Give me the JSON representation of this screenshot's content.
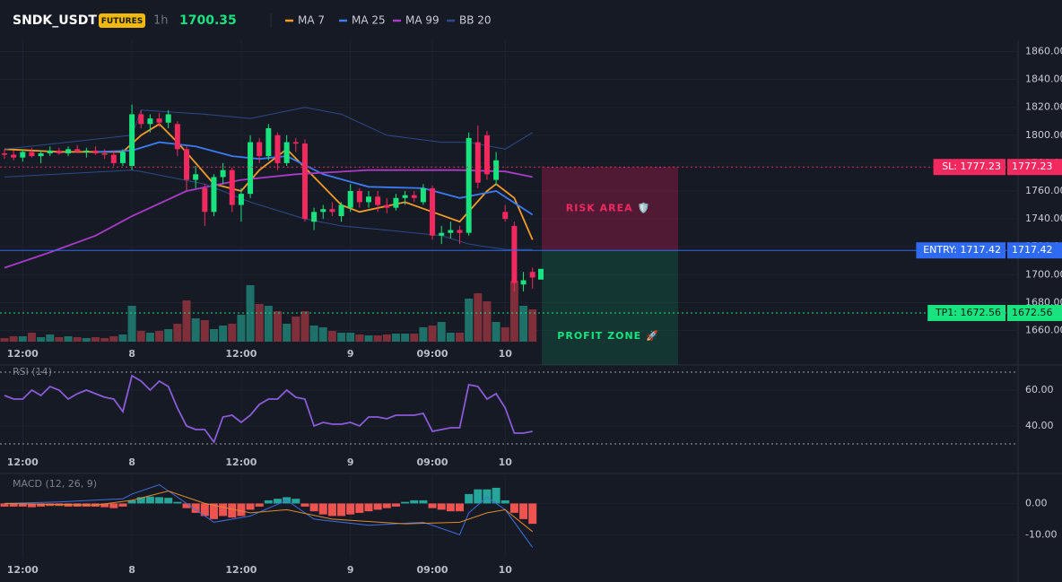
{
  "header": {
    "symbol": "SNDK_USDT",
    "badge": "FUTURES",
    "interval": "1h",
    "price": 1700.35
  },
  "chart_data": [
    {
      "type": "candlestick",
      "categories": [
        null,
        null,
        "12:00",
        null,
        null,
        null,
        null,
        null,
        null,
        null,
        null,
        null,
        null,
        null,
        "8",
        null,
        null,
        null,
        null,
        null,
        null,
        null,
        null,
        null,
        null,
        null,
        "12:00",
        null,
        null,
        null,
        null,
        null,
        null,
        null,
        null,
        null,
        null,
        null,
        "9",
        null,
        null,
        null,
        null,
        null,
        null,
        null,
        null,
        "09:00",
        null,
        null,
        null,
        null,
        null,
        null,
        null,
        "10",
        null,
        null,
        null
      ],
      "open": [
        1787,
        1786,
        1784,
        1788,
        1785,
        1787,
        1789,
        1787,
        1790,
        1788,
        1789,
        1787,
        1786,
        1780,
        1778,
        1815,
        1808,
        1812,
        1809,
        1808,
        1790,
        1768,
        1762,
        1745,
        1770,
        1775,
        1750,
        1758,
        1795,
        1785,
        1800,
        1780,
        1795,
        1794,
        1738,
        1745,
        1747,
        1742,
        1748,
        1760,
        1752,
        1756,
        1750,
        1748,
        1755,
        1757,
        1752,
        1762,
        1728,
        1730,
        1732,
        1730,
        1795,
        1800,
        1768,
        1745,
        1735,
        1693,
        1702
      ],
      "high": [
        1790,
        1789,
        1790,
        1791,
        1789,
        1792,
        1791,
        1792,
        1793,
        1791,
        1792,
        1790,
        1789,
        1790,
        1822,
        1818,
        1815,
        1816,
        1818,
        1810,
        1792,
        1778,
        1765,
        1772,
        1780,
        1777,
        1762,
        1800,
        1798,
        1808,
        1802,
        1800,
        1798,
        1797,
        1748,
        1750,
        1752,
        1752,
        1765,
        1762,
        1760,
        1760,
        1755,
        1758,
        1760,
        1760,
        1765,
        1764,
        1735,
        1738,
        1735,
        1802,
        1807,
        1803,
        1788,
        1750,
        1738,
        1702,
        1705
      ],
      "low": [
        1783,
        1782,
        1781,
        1784,
        1780,
        1785,
        1786,
        1785,
        1787,
        1784,
        1786,
        1783,
        1778,
        1778,
        1775,
        1805,
        1802,
        1806,
        1805,
        1785,
        1760,
        1762,
        1735,
        1742,
        1765,
        1745,
        1738,
        1755,
        1780,
        1782,
        1775,
        1778,
        1788,
        1738,
        1732,
        1740,
        1742,
        1738,
        1745,
        1748,
        1748,
        1745,
        1744,
        1746,
        1750,
        1752,
        1750,
        1725,
        1722,
        1726,
        1722,
        1728,
        1762,
        1768,
        1764,
        1738,
        1688,
        1688,
        1690
      ],
      "close": [
        1786,
        1784,
        1788,
        1785,
        1787,
        1789,
        1787,
        1790,
        1788,
        1789,
        1787,
        1786,
        1780,
        1788,
        1815,
        1808,
        1812,
        1809,
        1815,
        1790,
        1768,
        1772,
        1745,
        1770,
        1775,
        1750,
        1758,
        1795,
        1785,
        1805,
        1780,
        1795,
        1794,
        1740,
        1745,
        1747,
        1745,
        1750,
        1760,
        1752,
        1756,
        1750,
        1748,
        1755,
        1757,
        1755,
        1762,
        1728,
        1730,
        1732,
        1730,
        1798,
        1766,
        1772,
        1782,
        1740,
        1694,
        1696,
        1698
      ],
      "volume": [
        4,
        6,
        6,
        10,
        5,
        8,
        5,
        6,
        5,
        4,
        5,
        4,
        6,
        8,
        40,
        12,
        10,
        12,
        14,
        20,
        46,
        26,
        24,
        14,
        18,
        20,
        30,
        63,
        42,
        40,
        34,
        20,
        28,
        34,
        18,
        16,
        12,
        10,
        10,
        8,
        7,
        7,
        8,
        9,
        9,
        9,
        16,
        18,
        22,
        10,
        10,
        48,
        54,
        45,
        22,
        16,
        68,
        40,
        36
      ],
      "up_color": "#19e37f",
      "down_color": "#f2295f",
      "volume_up_color": "#1d7168",
      "volume_down_color": "#7e2f3a",
      "ylim": [
        1652,
        1868
      ],
      "yticks": [
        {
          "value": 1660,
          "label": "1660.00"
        },
        {
          "value": 1680,
          "label": "1680.00"
        },
        {
          "value": 1700,
          "label": "1700.00"
        },
        {
          "value": 1720,
          "label": "1720.00"
        },
        {
          "value": 1740,
          "label": "1740.00"
        },
        {
          "value": 1760,
          "label": "1760.00"
        },
        {
          "value": 1780,
          "label": "1780.00"
        },
        {
          "value": 1800,
          "label": "1800.00"
        },
        {
          "value": 1820,
          "label": "1820.00"
        },
        {
          "value": 1840,
          "label": "1840.00"
        },
        {
          "value": 1860,
          "label": "1860.00"
        }
      ],
      "overlays": [
        {
          "name": "MA 7",
          "color": "#f39c26",
          "x": [
            0,
            6,
            13,
            15,
            17,
            19,
            21,
            23,
            26,
            28,
            31,
            34,
            37,
            39,
            44,
            47,
            50,
            53,
            54,
            56,
            57,
            58
          ],
          "values": [
            1790,
            1788,
            1788,
            1800,
            1808,
            1795,
            1780,
            1765,
            1760,
            1775,
            1790,
            1770,
            1750,
            1745,
            1752,
            1745,
            1738,
            1760,
            1765,
            1755,
            1740,
            1725
          ]
        },
        {
          "name": "MA 25",
          "color": "#3c7bf0",
          "x": [
            10,
            14,
            17,
            21,
            25,
            28,
            31,
            35,
            40,
            46,
            50,
            54,
            58
          ],
          "values": [
            1788,
            1789,
            1795,
            1792,
            1785,
            1783,
            1785,
            1772,
            1763,
            1762,
            1755,
            1760,
            1743
          ]
        },
        {
          "name": "MA 99",
          "color": "#a83bc7",
          "x": [
            0,
            5,
            10,
            14,
            20,
            26,
            32,
            40,
            50,
            55,
            58
          ],
          "values": [
            1705,
            1716,
            1728,
            1742,
            1760,
            1768,
            1772,
            1775,
            1775,
            1774,
            1770
          ]
        },
        {
          "name": "BB 20",
          "color": "#2c4a86",
          "x": [
            0,
            14,
            15,
            22,
            27,
            33,
            37,
            42,
            48,
            51,
            55,
            58
          ],
          "upper": [
            1790,
            1800,
            1818,
            1815,
            1812,
            1820,
            1815,
            1800,
            1795,
            1795,
            1790,
            1802
          ],
          "lower": [
            1770,
            1775,
            1774,
            1765,
            1752,
            1740,
            1735,
            1732,
            1728,
            1722,
            1718,
            1718
          ]
        }
      ],
      "levels": [
        {
          "label": "SL: 1777.23",
          "value": 1777.23,
          "color": "#f2295f",
          "dashed": true
        },
        {
          "label": "ENTRY: 1717.42",
          "value": 1717.42,
          "color": "#2f6bf2",
          "dashed": false
        },
        {
          "label": "TP1: 1672.56",
          "value": 1672.56,
          "color": "#19e37f",
          "dashed": true
        }
      ],
      "zones": {
        "risk": "RISK AREA 🛡️",
        "profit": "PROFIT ZONE 🚀"
      }
    },
    {
      "type": "line",
      "title": "RSI (14)",
      "categories": [
        null,
        null,
        "12:00",
        null,
        null,
        null,
        null,
        null,
        null,
        null,
        null,
        null,
        null,
        null,
        "8",
        null,
        null,
        null,
        null,
        null,
        null,
        null,
        null,
        null,
        null,
        null,
        "12:00",
        null,
        null,
        null,
        null,
        null,
        null,
        null,
        null,
        null,
        null,
        null,
        "9",
        null,
        null,
        null,
        null,
        null,
        null,
        null,
        null,
        "09:00",
        null,
        null,
        null,
        null,
        null,
        null,
        null,
        "10",
        null,
        null,
        null
      ],
      "values": [
        57,
        55,
        55,
        60,
        57,
        62,
        60,
        55,
        58,
        60,
        58,
        56,
        55,
        48,
        68,
        65,
        60,
        65,
        62,
        50,
        40,
        38,
        38,
        31,
        45,
        46,
        42,
        46,
        52,
        55,
        55,
        60,
        56,
        55,
        40,
        42,
        41,
        41,
        42,
        40,
        45,
        45,
        44,
        46,
        46,
        46,
        47,
        37,
        38,
        39,
        39,
        63,
        62,
        55,
        58,
        50,
        36,
        36,
        37
      ],
      "color": "#8a5bd6",
      "ylim": [
        25,
        75
      ],
      "yticks": [
        {
          "value": 40,
          "label": "40.00"
        },
        {
          "value": 60,
          "label": "60.00"
        }
      ],
      "bands": [
        70,
        30
      ]
    },
    {
      "type": "bar",
      "title": "MACD (12, 26, 9)",
      "categories": [
        null,
        null,
        "12:00",
        null,
        null,
        null,
        null,
        null,
        null,
        null,
        null,
        null,
        null,
        null,
        "8",
        null,
        null,
        null,
        null,
        null,
        null,
        null,
        null,
        null,
        null,
        null,
        "12:00",
        null,
        null,
        null,
        null,
        null,
        null,
        null,
        null,
        null,
        null,
        null,
        "9",
        null,
        null,
        null,
        null,
        null,
        null,
        null,
        null,
        "09:00",
        null,
        null,
        null,
        null,
        null,
        null,
        null,
        "10",
        null,
        null,
        null
      ],
      "values": [
        -1,
        -1,
        -1,
        -1.2,
        -1,
        -0.8,
        -0.8,
        -1,
        -1,
        -1,
        -1,
        -1.2,
        -1.5,
        -1,
        1,
        2,
        2.2,
        2,
        1.8,
        0.5,
        -1.5,
        -3,
        -4,
        -5,
        -4,
        -4.5,
        -4,
        -2,
        -1,
        1,
        1.5,
        2,
        1.5,
        -1,
        -2.5,
        -3.5,
        -4,
        -4,
        -3.5,
        -3,
        -2.5,
        -2,
        -1.5,
        -1,
        0.5,
        1,
        1,
        -1.5,
        -2,
        -2.5,
        -2.5,
        3,
        4.5,
        4.5,
        5,
        1,
        -3,
        -5,
        -6.5
      ],
      "up_color": "#26a69a",
      "down_color": "#ef5350",
      "lines": [
        {
          "color": "#3f6fe0",
          "x": [
            0,
            6,
            13,
            14,
            17,
            20,
            23,
            27,
            31,
            34,
            40,
            46,
            47,
            50,
            51,
            53,
            55,
            58
          ],
          "values": [
            0,
            0.5,
            1.5,
            3,
            6,
            0,
            -6,
            -4,
            1,
            -5,
            -7,
            -6,
            -7,
            -10,
            -3,
            2,
            -2,
            -14
          ]
        },
        {
          "color": "#e08a2b",
          "x": [
            0,
            10,
            14,
            18,
            22,
            27,
            31,
            36,
            44,
            50,
            53,
            55,
            58
          ],
          "values": [
            0,
            -0.5,
            1,
            4,
            0,
            -3,
            -2,
            -5,
            -6.5,
            -6,
            -3,
            -2,
            -9
          ]
        }
      ],
      "ylim": [
        -17.5,
        9
      ],
      "yticks": [
        {
          "value": -10,
          "label": "-10.00"
        },
        {
          "value": 0,
          "label": "0.00"
        }
      ]
    }
  ]
}
